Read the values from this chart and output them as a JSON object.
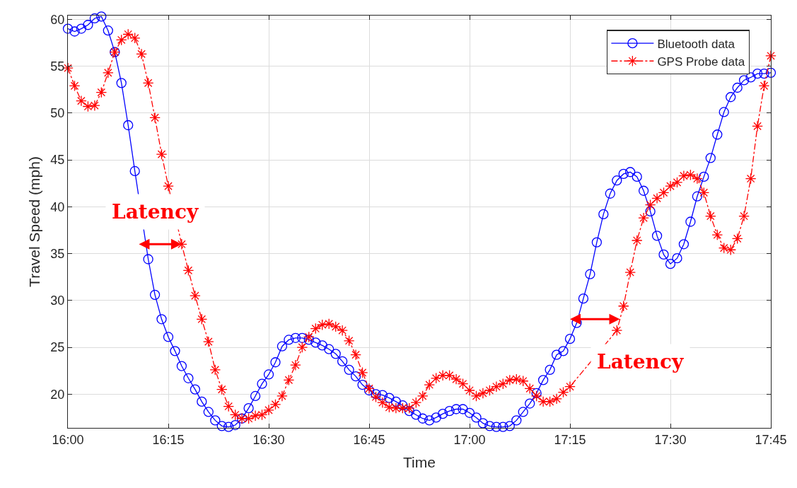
{
  "chart_data": {
    "type": "line",
    "xlabel": "Time",
    "ylabel": "Travel Speed (mph)",
    "xlim": [
      16.0,
      17.75
    ],
    "xticks": [
      {
        "value": 16.0,
        "label": "16:00"
      },
      {
        "value": 16.25,
        "label": "16:15"
      },
      {
        "value": 16.5,
        "label": "16:30"
      },
      {
        "value": 16.75,
        "label": "16:45"
      },
      {
        "value": 17.0,
        "label": "17:00"
      },
      {
        "value": 17.25,
        "label": "17:15"
      },
      {
        "value": 17.5,
        "label": "17:30"
      },
      {
        "value": 17.75,
        "label": "17:45"
      }
    ],
    "ylim": [
      16.4,
      60.4
    ],
    "yticks": [
      20,
      25,
      30,
      35,
      40,
      45,
      50,
      55,
      60
    ],
    "grid": true,
    "legend": "top right",
    "series": [
      {
        "name": "Bluetooth data",
        "color": "#0000ff",
        "marker": "circle",
        "line_style": "solid",
        "x": [
          16.0,
          16.0167,
          16.0333,
          16.05,
          16.0667,
          16.0833,
          16.1,
          16.1167,
          16.1333,
          16.15,
          16.1667,
          16.2,
          16.2167,
          16.2333,
          16.25,
          16.2667,
          16.2833,
          16.3,
          16.3167,
          16.3333,
          16.35,
          16.3667,
          16.3833,
          16.4,
          16.4167,
          16.4333,
          16.45,
          16.4667,
          16.4833,
          16.5,
          16.5167,
          16.5333,
          16.55,
          16.5667,
          16.5833,
          16.6,
          16.6167,
          16.6333,
          16.65,
          16.6667,
          16.6833,
          16.7,
          16.7167,
          16.7333,
          16.75,
          16.7667,
          16.7833,
          16.8,
          16.8167,
          16.8333,
          16.85,
          16.8667,
          16.8833,
          16.9,
          16.9167,
          16.9333,
          16.95,
          16.9667,
          16.9833,
          17.0,
          17.0167,
          17.0333,
          17.05,
          17.0667,
          17.0833,
          17.1,
          17.1167,
          17.1333,
          17.15,
          17.1667,
          17.1833,
          17.2,
          17.2167,
          17.2333,
          17.25,
          17.2667,
          17.2833,
          17.3,
          17.3167,
          17.3333,
          17.35,
          17.3667,
          17.3833,
          17.4,
          17.4167,
          17.4333,
          17.45,
          17.4667,
          17.4833,
          17.5,
          17.5167,
          17.5333,
          17.55,
          17.5667,
          17.5833,
          17.6,
          17.6167,
          17.6333,
          17.65,
          17.6667,
          17.6833,
          17.7,
          17.7167,
          17.7333,
          17.75
        ],
        "values": [
          59.0,
          58.7,
          59.0,
          59.4,
          60.1,
          60.3,
          58.8,
          56.5,
          53.2,
          48.7,
          43.8,
          34.4,
          30.6,
          28.0,
          26.1,
          24.6,
          23.0,
          21.7,
          20.5,
          19.2,
          18.1,
          17.2,
          16.6,
          16.5,
          16.7,
          17.4,
          18.5,
          19.8,
          21.1,
          22.1,
          23.4,
          25.1,
          25.8,
          26.0,
          26.0,
          25.8,
          25.5,
          25.2,
          24.8,
          24.3,
          23.5,
          22.6,
          21.9,
          21.0,
          20.4,
          20.0,
          19.9,
          19.6,
          19.2,
          18.8,
          18.2,
          17.8,
          17.4,
          17.2,
          17.5,
          17.9,
          18.2,
          18.4,
          18.4,
          18.0,
          17.5,
          16.9,
          16.6,
          16.5,
          16.5,
          16.6,
          17.2,
          18.1,
          19.0,
          20.1,
          21.5,
          22.6,
          24.2,
          24.6,
          25.9,
          27.6,
          30.2,
          32.8,
          36.2,
          39.2,
          41.4,
          42.8,
          43.5,
          43.7,
          43.2,
          41.7,
          39.5,
          36.9,
          34.9,
          33.9,
          34.5,
          36.0,
          38.4,
          41.1,
          43.2,
          45.2,
          47.7,
          50.1,
          51.7,
          52.7,
          53.5,
          53.8,
          54.2,
          54.2,
          54.3
        ]
      },
      {
        "name": "GPS Probe data",
        "color": "#ff0000",
        "marker": "cross",
        "line_style": "dashed",
        "x": [
          16.0,
          16.0167,
          16.0333,
          16.05,
          16.0667,
          16.0833,
          16.1,
          16.1167,
          16.1333,
          16.15,
          16.1667,
          16.1833,
          16.2,
          16.2167,
          16.2333,
          16.25,
          16.2833,
          16.3,
          16.3167,
          16.3333,
          16.35,
          16.3667,
          16.3833,
          16.4,
          16.4167,
          16.4333,
          16.45,
          16.4667,
          16.4833,
          16.5,
          16.5167,
          16.5333,
          16.55,
          16.5667,
          16.5833,
          16.6,
          16.6167,
          16.6333,
          16.65,
          16.6667,
          16.6833,
          16.7,
          16.7167,
          16.7333,
          16.75,
          16.7667,
          16.7833,
          16.8,
          16.8167,
          16.8333,
          16.85,
          16.8667,
          16.8833,
          16.9,
          16.9167,
          16.9333,
          16.95,
          16.9667,
          16.9833,
          17.0,
          17.0167,
          17.0333,
          17.05,
          17.0667,
          17.0833,
          17.1,
          17.1167,
          17.1333,
          17.15,
          17.1667,
          17.1833,
          17.2,
          17.2167,
          17.2333,
          17.25,
          17.3667,
          17.3833,
          17.4,
          17.4167,
          17.4333,
          17.45,
          17.4667,
          17.4833,
          17.5,
          17.5167,
          17.5333,
          17.55,
          17.5667,
          17.5833,
          17.6,
          17.6167,
          17.6333,
          17.65,
          17.6667,
          17.6833,
          17.7,
          17.7167,
          17.7333,
          17.75
        ],
        "values": [
          54.8,
          52.9,
          51.3,
          50.7,
          50.8,
          52.2,
          54.3,
          56.5,
          57.8,
          58.4,
          58.0,
          56.3,
          53.2,
          49.5,
          45.6,
          42.2,
          36.0,
          33.2,
          30.5,
          28.0,
          25.6,
          22.6,
          20.5,
          18.7,
          17.8,
          17.4,
          17.4,
          17.7,
          17.8,
          18.3,
          18.9,
          19.8,
          21.5,
          23.1,
          25.0,
          26.1,
          27.0,
          27.4,
          27.5,
          27.2,
          26.8,
          25.7,
          24.2,
          22.3,
          20.6,
          19.7,
          19.1,
          18.6,
          18.5,
          18.5,
          18.5,
          19.1,
          19.8,
          21.0,
          21.7,
          22.0,
          22.0,
          21.6,
          21.1,
          20.4,
          19.8,
          20.1,
          20.4,
          20.8,
          21.1,
          21.5,
          21.6,
          21.4,
          20.6,
          19.8,
          19.2,
          19.2,
          19.5,
          20.2,
          20.8,
          26.8,
          29.4,
          33.0,
          36.4,
          38.8,
          40.2,
          40.9,
          41.5,
          42.2,
          42.6,
          43.3,
          43.4,
          43.0,
          41.5,
          39.0,
          37.0,
          35.6,
          35.4,
          36.6,
          39.0,
          43.0,
          48.6,
          52.9,
          56.1
        ]
      }
    ],
    "annotations": [
      {
        "text": "Latency",
        "x": 16.2833,
        "y": 36.0
      },
      {
        "text": "Latency",
        "x": 17.25,
        "y": 28.0
      }
    ]
  }
}
